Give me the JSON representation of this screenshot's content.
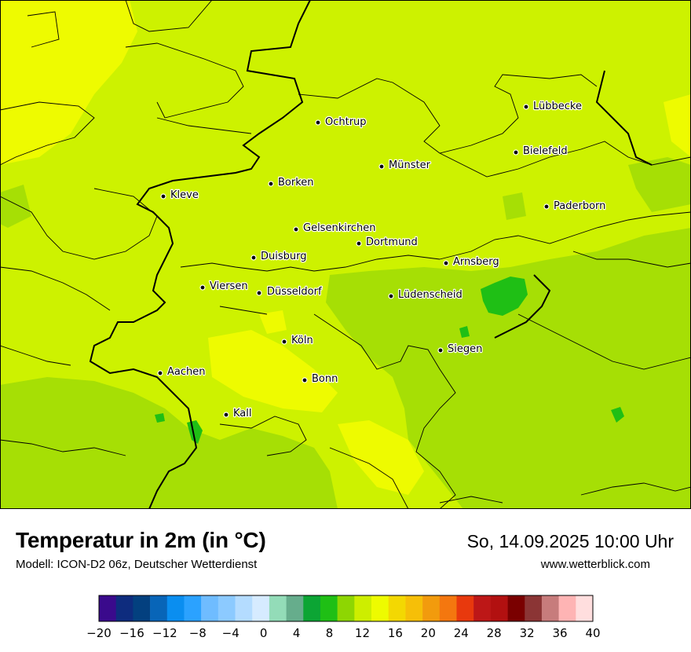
{
  "map": {
    "background_color": "#cdf200",
    "cities": [
      {
        "name": "Lübbecke"
      },
      {
        "name": "Ochtrup"
      },
      {
        "name": "Bielefeld"
      },
      {
        "name": "Münster"
      },
      {
        "name": "Borken"
      },
      {
        "name": "Kleve"
      },
      {
        "name": "Paderborn"
      },
      {
        "name": "Gelsenkirchen"
      },
      {
        "name": "Dortmund"
      },
      {
        "name": "Duisburg"
      },
      {
        "name": "Arnsberg"
      },
      {
        "name": "Viersen"
      },
      {
        "name": "Düsseldorf"
      },
      {
        "name": "Lüdenscheid"
      },
      {
        "name": "Köln"
      },
      {
        "name": "Siegen"
      },
      {
        "name": "Aachen"
      },
      {
        "name": "Bonn"
      },
      {
        "name": "Kall"
      }
    ]
  },
  "header": {
    "title": "Temperatur in 2m (in °C)",
    "model": "Modell: ICON-D2 06z, Deutscher Wetterdienst",
    "datetime": "So, 14.09.2025 10:00 Uhr",
    "website": "www.wetterblick.com"
  },
  "legend": {
    "min": -20,
    "max": 40,
    "step": 2,
    "tick_labels": [
      "−20",
      "−16",
      "−12",
      "−8",
      "−4",
      "0",
      "4",
      "8",
      "12",
      "16",
      "20",
      "24",
      "28",
      "32",
      "36",
      "40"
    ],
    "colors": [
      "#3a0a8c",
      "#0e2c7e",
      "#03407f",
      "#0865b8",
      "#0a8ef0",
      "#2ba2ff",
      "#6fbcff",
      "#8ccaff",
      "#b4dcff",
      "#d6ebff",
      "#93dcb8",
      "#66ad8c",
      "#0ca534",
      "#1fbf15",
      "#8ed602",
      "#cdee00",
      "#eefb00",
      "#f3d802",
      "#f6bf08",
      "#f29b0d",
      "#f4770f",
      "#e8390d",
      "#bd1717",
      "#b21010",
      "#7a0000",
      "#8b3535",
      "#c77c7c",
      "#feb4b4",
      "#ffdede"
    ]
  }
}
